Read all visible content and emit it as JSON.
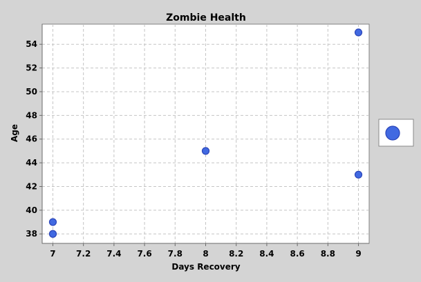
{
  "chart_data": {
    "type": "scatter",
    "title": "Zombie Health",
    "xlabel": "Days Recovery",
    "ylabel": "Age",
    "xlim": [
      6.93,
      9.07
    ],
    "ylim": [
      37.2,
      55.7
    ],
    "x_ticks": [
      7,
      7.2,
      7.4,
      7.6,
      7.8,
      8,
      8.2,
      8.4,
      8.6,
      8.8,
      9
    ],
    "y_ticks": [
      38,
      40,
      42,
      44,
      46,
      48,
      50,
      52,
      54
    ],
    "grid": true,
    "legend": {
      "placement": "right",
      "entries": [
        ""
      ]
    },
    "series": [
      {
        "x": [
          7,
          7,
          8,
          9,
          9
        ],
        "y": [
          38,
          39,
          45,
          43,
          55
        ]
      }
    ],
    "colors": {
      "background": "#d4d4d4",
      "plot_background": "#ffffff",
      "marker_fill": "#4169e1",
      "marker_stroke": "#2a44b8"
    }
  }
}
